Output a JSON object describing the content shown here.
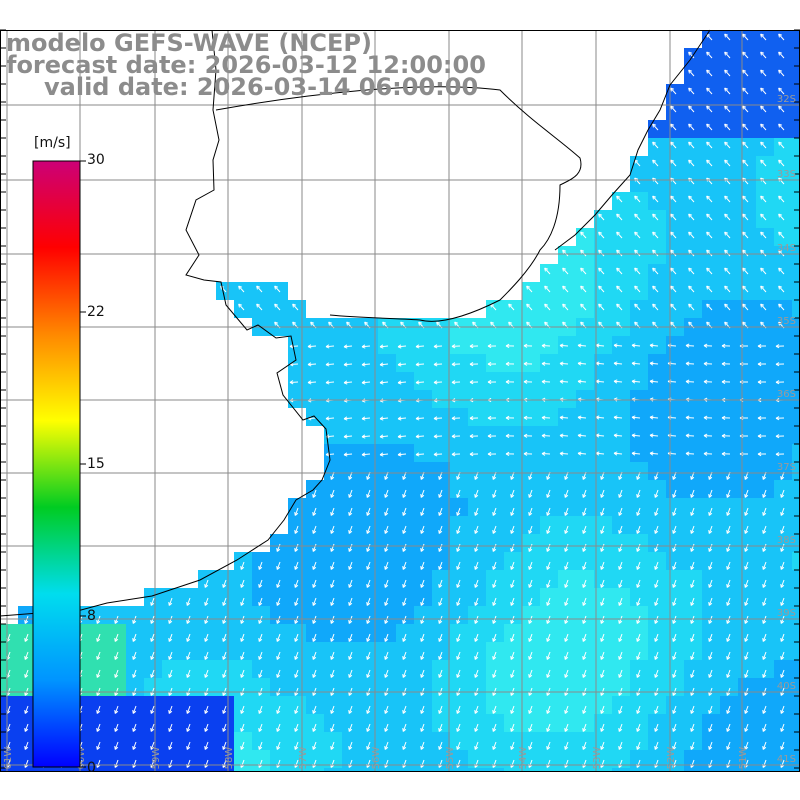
{
  "title": {
    "line1": "modelo GEFS-WAVE (NCEP)",
    "line2": "forecast date: 2026-03-12 12:00:00",
    "line3": "valid date: 2026-03-14 06:00:00"
  },
  "colorbar": {
    "unit": "[m/s]",
    "ticks": [
      "30",
      "22",
      "15",
      "8",
      "0"
    ],
    "colors": [
      "#0000ff",
      "#0094ff",
      "#00ddee",
      "#00cc22",
      "#ffff00",
      "#ff8800",
      "#ff0000",
      "#cc0077"
    ]
  },
  "map": {
    "lat_labels": [
      "32S",
      "33S",
      "34S",
      "35S",
      "36S",
      "37S",
      "38S",
      "39S",
      "40S",
      "41S"
    ],
    "lon_labels": [
      "61W",
      "60W",
      "59W",
      "58W",
      "57W",
      "56W",
      "55W",
      "54W",
      "53W",
      "52W",
      "51W"
    ],
    "colors": {
      "land": "#ffffff",
      "coast": "#000000",
      "grid": "#8a8a8a",
      "arrow": "#ffffff"
    }
  }
}
